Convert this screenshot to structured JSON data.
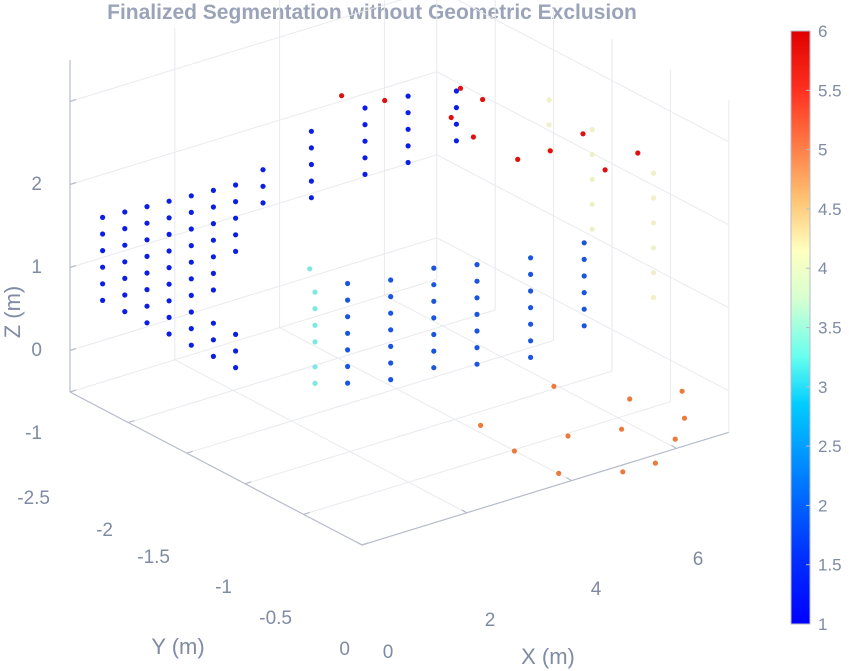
{
  "chart_data": {
    "type": "scatter",
    "title": "Finalized Segmentation without Geometric Exclusion",
    "xlabel": "X (m)",
    "ylabel": "Y (m)",
    "zlabel": "Z (m)",
    "x_ticks": [
      "0",
      "2",
      "4",
      "6"
    ],
    "y_ticks": [
      "-2.5",
      "-2",
      "-1.5",
      "-1",
      "-0.5",
      "0"
    ],
    "z_ticks": [
      "2",
      "1",
      "0",
      "-1"
    ],
    "xlim": [
      0,
      7
    ],
    "ylim": [
      -2.5,
      0
    ],
    "zlim": [
      -1.5,
      2.5
    ],
    "grid": true,
    "colorbar": {
      "ticks": [
        "6",
        "5.5",
        "5",
        "4.5",
        "4",
        "3.5",
        "3",
        "2.5",
        "2",
        "1.5",
        "1"
      ],
      "range": [
        1,
        6
      ],
      "colormap": "jet",
      "colors": [
        "#0000ff",
        "#0040ff",
        "#0080ff",
        "#00c0ff",
        "#40ffff",
        "#c0ffd0",
        "#ffffc0",
        "#ffd080",
        "#ff9040",
        "#ff4020",
        "#e00000"
      ]
    },
    "series": [
      {
        "label": 1,
        "color": "#0a1ee6",
        "points": [
          [
            0.4,
            -2.4,
            0.6
          ],
          [
            0.4,
            -2.4,
            0.4
          ],
          [
            0.4,
            -2.4,
            0.2
          ],
          [
            0.4,
            -2.4,
            0.0
          ],
          [
            0.4,
            -2.4,
            -0.2
          ],
          [
            0.4,
            -2.4,
            -0.4
          ],
          [
            0.6,
            -2.3,
            0.7
          ],
          [
            0.6,
            -2.3,
            0.5
          ],
          [
            0.6,
            -2.3,
            0.3
          ],
          [
            0.6,
            -2.3,
            0.1
          ],
          [
            0.6,
            -2.3,
            -0.1
          ],
          [
            0.6,
            -2.3,
            -0.3
          ],
          [
            0.6,
            -2.3,
            -0.5
          ],
          [
            0.8,
            -2.2,
            0.8
          ],
          [
            0.8,
            -2.2,
            0.6
          ],
          [
            0.8,
            -2.2,
            0.4
          ],
          [
            0.8,
            -2.2,
            0.2
          ],
          [
            0.8,
            -2.2,
            0.0
          ],
          [
            0.8,
            -2.2,
            -0.2
          ],
          [
            0.8,
            -2.2,
            -0.4
          ],
          [
            0.8,
            -2.2,
            -0.6
          ],
          [
            1.0,
            -2.1,
            0.9
          ],
          [
            1.0,
            -2.1,
            0.7
          ],
          [
            1.0,
            -2.1,
            0.5
          ],
          [
            1.0,
            -2.1,
            0.3
          ],
          [
            1.0,
            -2.1,
            0.1
          ],
          [
            1.0,
            -2.1,
            -0.1
          ],
          [
            1.0,
            -2.1,
            -0.3
          ],
          [
            1.0,
            -2.1,
            -0.5
          ],
          [
            1.0,
            -2.1,
            -0.7
          ],
          [
            1.2,
            -2.0,
            1.0
          ],
          [
            1.2,
            -2.0,
            0.8
          ],
          [
            1.2,
            -2.0,
            0.6
          ],
          [
            1.2,
            -2.0,
            0.4
          ],
          [
            1.2,
            -2.0,
            0.2
          ],
          [
            1.2,
            -2.0,
            0.0
          ],
          [
            1.2,
            -2.0,
            -0.2
          ],
          [
            1.2,
            -2.0,
            -0.4
          ],
          [
            1.2,
            -2.0,
            -0.6
          ],
          [
            1.2,
            -2.0,
            -0.8
          ],
          [
            1.4,
            -1.9,
            1.1
          ],
          [
            1.4,
            -1.9,
            0.9
          ],
          [
            1.4,
            -1.9,
            0.7
          ],
          [
            1.4,
            -1.9,
            0.5
          ],
          [
            1.4,
            -1.9,
            0.3
          ],
          [
            1.4,
            -1.9,
            0.1
          ],
          [
            1.4,
            -1.9,
            -0.1
          ],
          [
            1.4,
            -1.9,
            -0.5
          ],
          [
            1.4,
            -1.9,
            -0.7
          ],
          [
            1.4,
            -1.9,
            -0.9
          ],
          [
            1.6,
            -1.8,
            1.2
          ],
          [
            1.6,
            -1.8,
            1.0
          ],
          [
            1.6,
            -1.8,
            0.8
          ],
          [
            1.6,
            -1.8,
            0.6
          ],
          [
            1.6,
            -1.8,
            0.4
          ],
          [
            1.6,
            -1.8,
            -0.6
          ],
          [
            1.6,
            -1.8,
            -0.8
          ],
          [
            1.6,
            -1.8,
            -1.0
          ],
          [
            1.9,
            -1.7,
            1.4
          ],
          [
            1.9,
            -1.7,
            1.2
          ],
          [
            1.9,
            -1.7,
            1.0
          ],
          [
            2.6,
            -1.6,
            1.8
          ],
          [
            2.6,
            -1.6,
            1.6
          ],
          [
            2.6,
            -1.6,
            1.4
          ],
          [
            2.6,
            -1.6,
            1.2
          ],
          [
            2.6,
            -1.6,
            1.0
          ],
          [
            3.4,
            -1.5,
            2.0
          ],
          [
            3.4,
            -1.5,
            1.8
          ],
          [
            3.4,
            -1.5,
            1.6
          ],
          [
            3.4,
            -1.5,
            1.4
          ],
          [
            3.4,
            -1.5,
            1.2
          ],
          [
            4.0,
            -1.4,
            2.1
          ],
          [
            4.0,
            -1.4,
            1.9
          ],
          [
            4.0,
            -1.4,
            1.7
          ],
          [
            4.0,
            -1.4,
            1.5
          ],
          [
            4.0,
            -1.4,
            1.3
          ],
          [
            4.7,
            -1.3,
            2.1
          ],
          [
            4.7,
            -1.3,
            1.9
          ],
          [
            4.7,
            -1.3,
            1.7
          ],
          [
            4.7,
            -1.3,
            1.5
          ]
        ]
      },
      {
        "label": 2,
        "color": "#1a55e0",
        "points": [
          [
            2.4,
            -1.2,
            0.3
          ],
          [
            2.4,
            -1.2,
            0.1
          ],
          [
            2.4,
            -1.2,
            -0.1
          ],
          [
            2.4,
            -1.2,
            -0.3
          ],
          [
            2.4,
            -1.2,
            -0.5
          ],
          [
            2.4,
            -1.2,
            -0.7
          ],
          [
            2.4,
            -1.2,
            -0.9
          ],
          [
            3.0,
            -1.1,
            0.3
          ],
          [
            3.0,
            -1.1,
            0.1
          ],
          [
            3.0,
            -1.1,
            -0.1
          ],
          [
            3.0,
            -1.1,
            -0.3
          ],
          [
            3.0,
            -1.1,
            -0.5
          ],
          [
            3.0,
            -1.1,
            -0.7
          ],
          [
            3.0,
            -1.1,
            -0.9
          ],
          [
            3.6,
            -1.0,
            0.4
          ],
          [
            3.6,
            -1.0,
            0.2
          ],
          [
            3.6,
            -1.0,
            0.0
          ],
          [
            3.6,
            -1.0,
            -0.2
          ],
          [
            3.6,
            -1.0,
            -0.4
          ],
          [
            3.6,
            -1.0,
            -0.6
          ],
          [
            3.6,
            -1.0,
            -0.8
          ],
          [
            4.2,
            -0.9,
            0.4
          ],
          [
            4.2,
            -0.9,
            0.2
          ],
          [
            4.2,
            -0.9,
            0.0
          ],
          [
            4.2,
            -0.9,
            -0.2
          ],
          [
            4.2,
            -0.9,
            -0.4
          ],
          [
            4.2,
            -0.9,
            -0.6
          ],
          [
            4.2,
            -0.9,
            -0.8
          ],
          [
            5.0,
            -0.8,
            0.4
          ],
          [
            5.0,
            -0.8,
            0.2
          ],
          [
            5.0,
            -0.8,
            0.0
          ],
          [
            5.0,
            -0.8,
            -0.2
          ],
          [
            5.0,
            -0.8,
            -0.4
          ],
          [
            5.0,
            -0.8,
            -0.6
          ],
          [
            5.0,
            -0.8,
            -0.8
          ],
          [
            5.8,
            -0.7,
            0.5
          ],
          [
            5.8,
            -0.7,
            0.3
          ],
          [
            5.8,
            -0.7,
            0.1
          ],
          [
            5.8,
            -0.7,
            -0.1
          ],
          [
            5.8,
            -0.7,
            -0.3
          ],
          [
            5.8,
            -0.7,
            -0.5
          ]
        ]
      },
      {
        "label": 3,
        "color": "#7ee8e0",
        "points": [
          [
            1.9,
            -1.3,
            0.5
          ],
          [
            2.0,
            -1.3,
            0.2
          ],
          [
            2.0,
            -1.3,
            0.0
          ],
          [
            2.0,
            -1.3,
            -0.2
          ],
          [
            2.0,
            -1.3,
            -0.4
          ],
          [
            2.0,
            -1.3,
            -0.7
          ],
          [
            2.0,
            -1.3,
            -0.9
          ]
        ]
      },
      {
        "label": 4,
        "color": "#f0f0c8",
        "points": [
          [
            5.8,
            -1.0,
            2.0
          ],
          [
            5.8,
            -1.0,
            1.7
          ],
          [
            5.8,
            -1.0,
            1.4
          ],
          [
            6.4,
            -0.9,
            1.6
          ],
          [
            6.4,
            -0.9,
            1.3
          ],
          [
            6.4,
            -0.9,
            1.0
          ],
          [
            6.4,
            -0.9,
            0.7
          ],
          [
            6.4,
            -0.9,
            0.4
          ],
          [
            6.9,
            -0.6,
            1.2
          ],
          [
            6.9,
            -0.6,
            0.9
          ],
          [
            6.9,
            -0.6,
            0.6
          ],
          [
            6.9,
            -0.6,
            0.3
          ],
          [
            6.9,
            -0.6,
            0.0
          ],
          [
            6.9,
            -0.6,
            -0.3
          ]
        ]
      },
      {
        "label": 5,
        "color": "#ec7a3c",
        "points": [
          [
            3.6,
            -0.6,
            -1.2
          ],
          [
            3.8,
            -0.4,
            -1.4
          ],
          [
            4.2,
            -0.2,
            -1.6
          ],
          [
            5.0,
            -0.6,
            -1.0
          ],
          [
            4.6,
            -0.3,
            -1.3
          ],
          [
            5.4,
            -0.2,
            -1.3
          ],
          [
            5.6,
            0.0,
            -1.6
          ],
          [
            6.2,
            -0.1,
            -1.5
          ],
          [
            6.0,
            -0.4,
            -1.2
          ],
          [
            6.6,
            -0.2,
            -1.4
          ],
          [
            7.0,
            -0.4,
            -1.3
          ],
          [
            5.2,
            -0.1,
            -1.7
          ]
        ]
      },
      {
        "label": 6,
        "color": "#e01010",
        "points": [
          [
            3.4,
            -1.7,
            2.0
          ],
          [
            4.0,
            -1.6,
            1.9
          ],
          [
            4.6,
            -1.3,
            1.8
          ],
          [
            4.8,
            -1.2,
            1.6
          ],
          [
            5.2,
            -1.3,
            1.9
          ],
          [
            5.2,
            -1.0,
            1.4
          ],
          [
            5.6,
            -0.9,
            1.5
          ],
          [
            6.0,
            -0.8,
            1.7
          ],
          [
            6.2,
            -0.7,
            1.3
          ],
          [
            6.6,
            -0.6,
            1.5
          ],
          [
            5.0,
            -1.4,
            2.0
          ]
        ]
      }
    ]
  }
}
